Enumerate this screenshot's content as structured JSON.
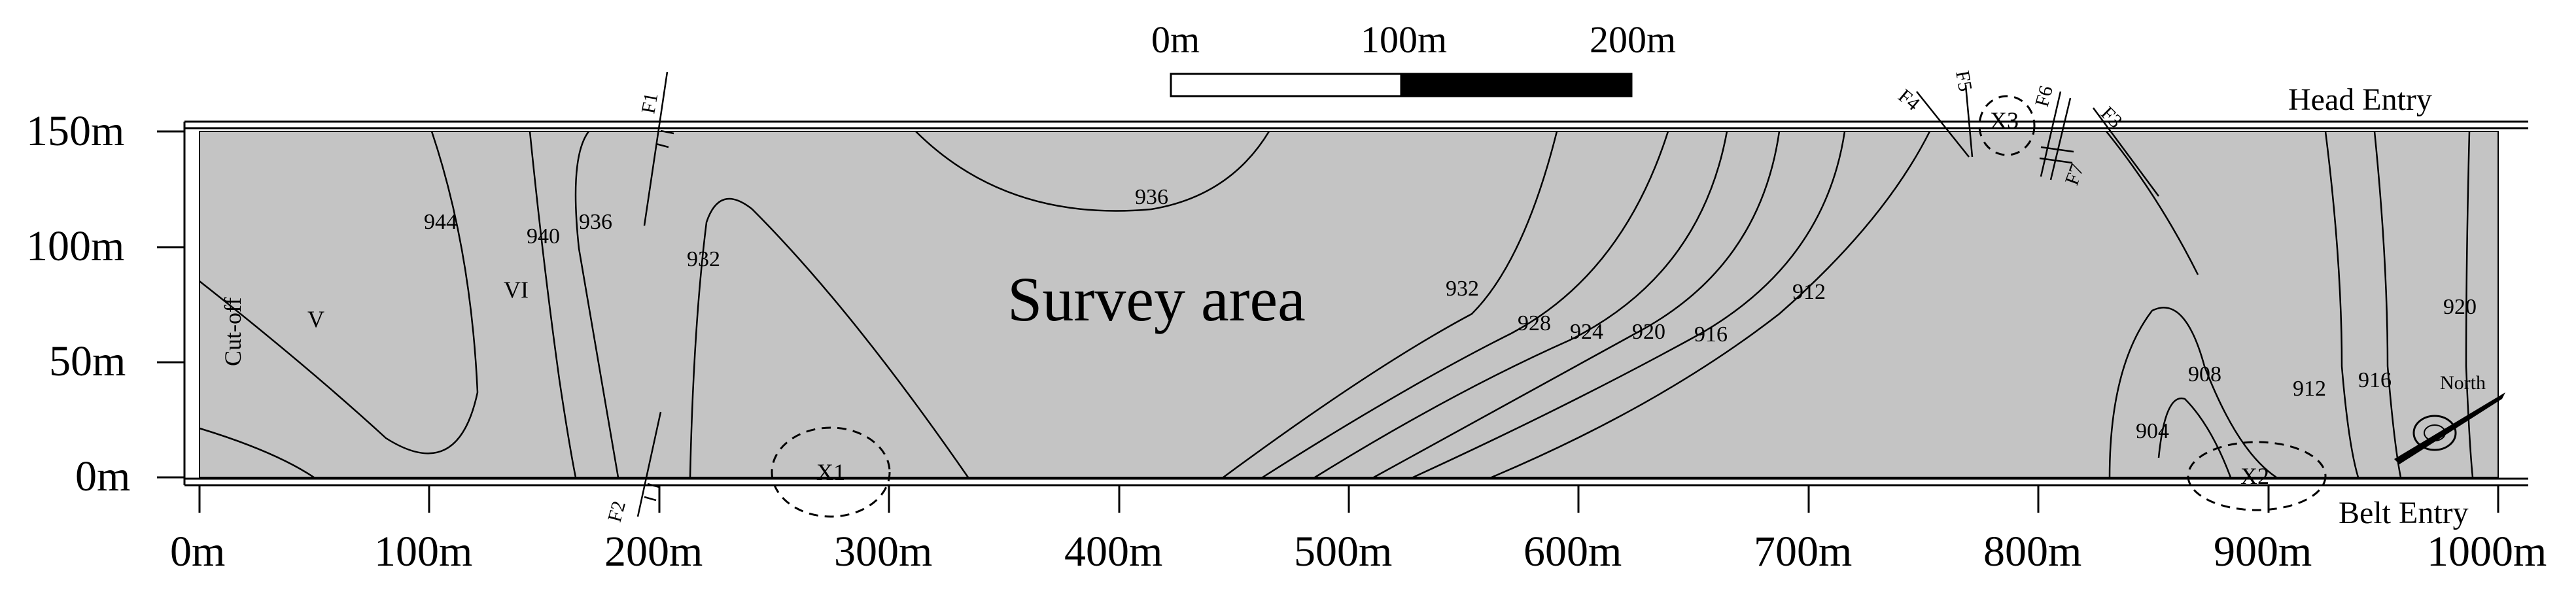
{
  "survey": {
    "title": "Survey area",
    "head_entry": "Head Entry",
    "belt_entry": "Belt Entry",
    "cut_off": "Cut-off",
    "north": "North",
    "zone_v": "V",
    "zone_vi": "VI"
  },
  "axes": {
    "x_ticks": [
      "0m",
      "100m",
      "200m",
      "300m",
      "400m",
      "500m",
      "600m",
      "700m",
      "800m",
      "900m",
      "1000m"
    ],
    "y_ticks": [
      "0m",
      "50m",
      "100m",
      "150m"
    ]
  },
  "scale_bar": {
    "labels": [
      "0m",
      "100m",
      "200m"
    ]
  },
  "contour_labels": [
    "944",
    "940",
    "936",
    "932",
    "936",
    "932",
    "928",
    "924",
    "920",
    "916",
    "912",
    "908",
    "904",
    "912",
    "916",
    "920"
  ],
  "faults": [
    "F1",
    "F2",
    "F3",
    "F4",
    "F5",
    "F6",
    "F7"
  ],
  "anomalies": [
    "X1",
    "X2",
    "X3"
  ],
  "colors": {
    "survey_fill": "#c4c4c4",
    "line": "#000000",
    "background": "#ffffff"
  }
}
